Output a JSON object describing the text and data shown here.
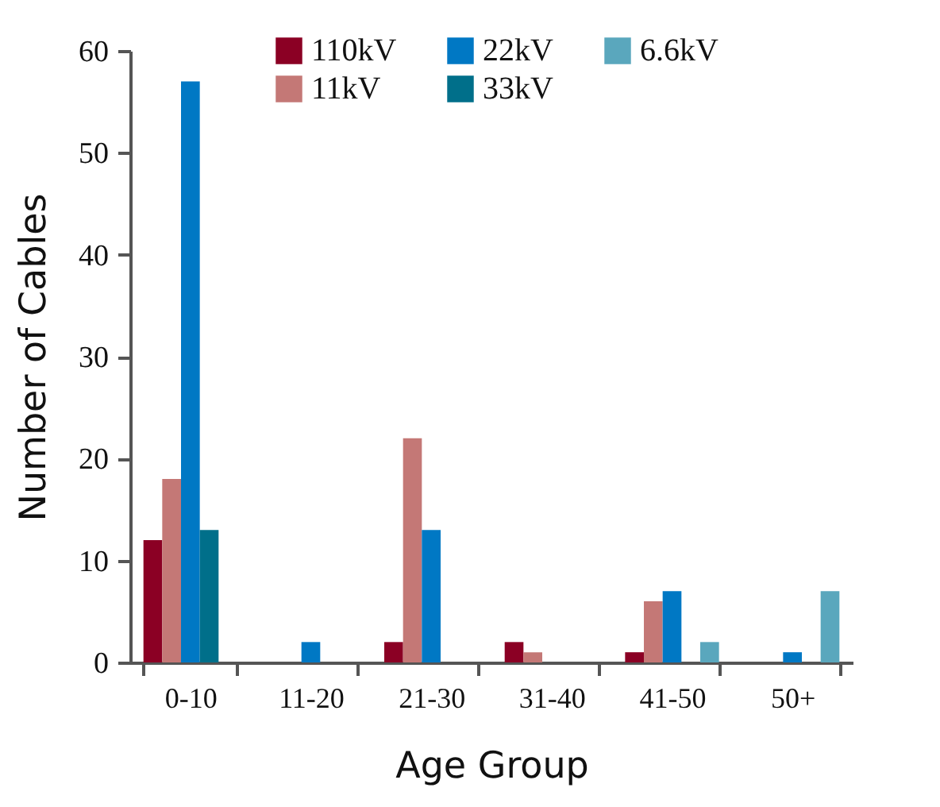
{
  "chart_data": {
    "type": "bar",
    "xlabel": "Age Group",
    "ylabel": "Number of Cables",
    "categories": [
      "0-10",
      "11-20",
      "21-30",
      "31-40",
      "41-50",
      "50+"
    ],
    "series": [
      {
        "name": "110kV",
        "color": "#8b0024",
        "values": [
          12,
          0,
          2,
          2,
          1,
          0
        ]
      },
      {
        "name": "11kV",
        "color": "#c47876",
        "values": [
          18,
          0,
          22,
          1,
          6,
          0
        ]
      },
      {
        "name": "22kV",
        "color": "#0078c4",
        "values": [
          57,
          2,
          13,
          0,
          7,
          1
        ]
      },
      {
        "name": "33kV",
        "color": "#006f8a",
        "values": [
          13,
          0,
          0,
          0,
          0,
          0
        ]
      },
      {
        "name": "6.6kV",
        "color": "#5aa7bd",
        "values": [
          0,
          0,
          0,
          0,
          2,
          7
        ]
      }
    ],
    "ylim": [
      0,
      60
    ],
    "yticks": [
      0,
      10,
      20,
      30,
      40,
      50,
      60
    ],
    "grid": false,
    "legend": "top right"
  }
}
